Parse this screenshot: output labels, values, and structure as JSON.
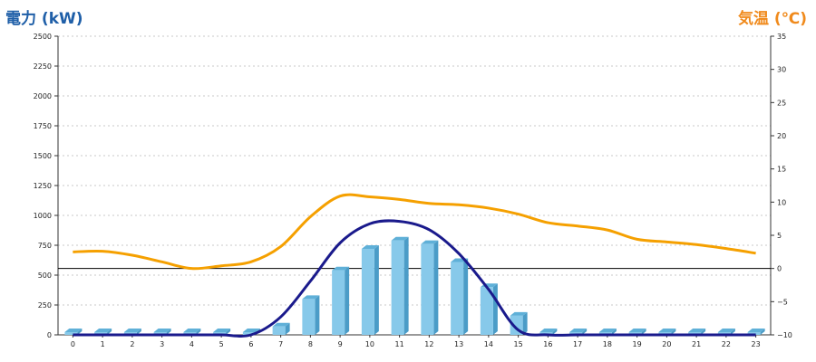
{
  "chart_data": {
    "type": "bar",
    "y_left_label": "電力 (kW)",
    "y_right_label": "気温 (℃)",
    "categories": [
      "0",
      "1",
      "2",
      "3",
      "4",
      "5",
      "6",
      "7",
      "8",
      "9",
      "10",
      "11",
      "12",
      "13",
      "14",
      "15",
      "16",
      "17",
      "18",
      "19",
      "20",
      "21",
      "22",
      "23"
    ],
    "y_left_ticks": [
      "0",
      "250",
      "500",
      "750",
      "1000",
      "1250",
      "1500",
      "1750",
      "2000",
      "2250",
      "2500"
    ],
    "y_right_ticks": [
      "−10",
      "−5",
      "0",
      "5",
      "10",
      "15",
      "20",
      "25",
      "30",
      "35"
    ],
    "ylim_left": [
      0,
      2500
    ],
    "ylim_right": [
      -10,
      35
    ],
    "grid": true,
    "series": [
      {
        "kind": "bar",
        "axis": "left",
        "color": "#87c9ea",
        "values": [
          0,
          0,
          0,
          0,
          0,
          0,
          0,
          70,
          300,
          540,
          720,
          790,
          760,
          610,
          400,
          160,
          0,
          0,
          0,
          0,
          0,
          0,
          0,
          0
        ]
      },
      {
        "kind": "line",
        "axis": "left",
        "color": "#1a1a8c",
        "values": [
          0,
          0,
          0,
          0,
          0,
          0,
          0,
          150,
          450,
          770,
          930,
          950,
          880,
          680,
          380,
          40,
          0,
          0,
          0,
          0,
          0,
          0,
          0,
          0
        ]
      },
      {
        "kind": "line",
        "axis": "right",
        "color": "#f5a000",
        "values": [
          2.5,
          2.6,
          2.0,
          1.0,
          0.0,
          0.4,
          1.0,
          3.3,
          7.8,
          10.9,
          10.8,
          10.4,
          9.8,
          9.6,
          9.1,
          8.2,
          6.9,
          6.4,
          5.8,
          4.4,
          4.0,
          3.6,
          3.0,
          2.3
        ]
      }
    ]
  }
}
